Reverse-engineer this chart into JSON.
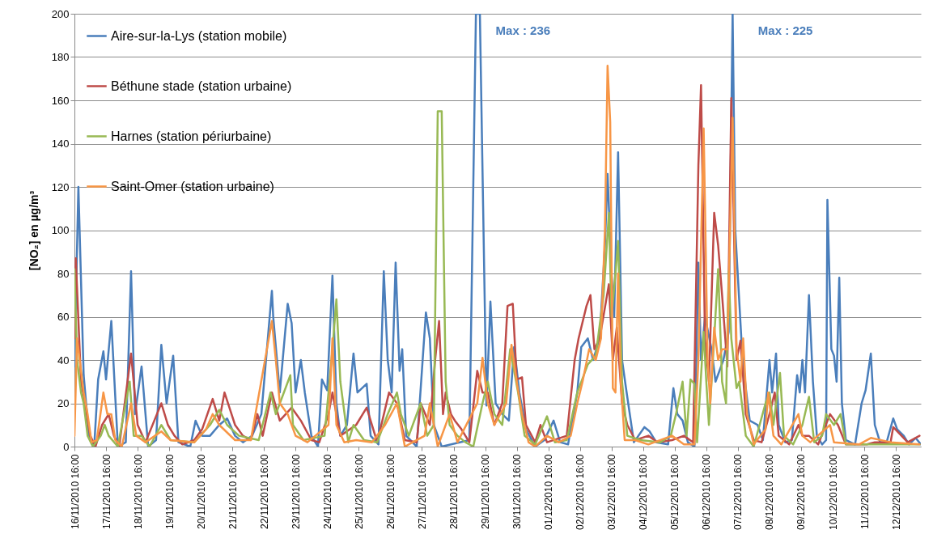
{
  "chart_data": {
    "type": "line",
    "ylabel": "[NO₂] en µg/m³",
    "annotations": [
      "Max : 236",
      "Max : 225"
    ],
    "xlim": [
      "2010-11-16T16:00",
      "2010-12-13T11:00"
    ],
    "ylim": [
      0,
      200
    ],
    "yticks": [
      0,
      20,
      40,
      60,
      80,
      100,
      120,
      140,
      160,
      180,
      200
    ],
    "xticks": [
      {
        "value": "2010-11-16T16:00",
        "label": "16/11/2010 16:00"
      },
      {
        "value": "2010-11-17T16:00",
        "label": "17/11/2010 16:00"
      },
      {
        "value": "2010-11-18T16:00",
        "label": "18/11/2010 16:00"
      },
      {
        "value": "2010-11-19T16:00",
        "label": "19/11/2010 16:00"
      },
      {
        "value": "2010-11-20T16:00",
        "label": "20/11/2010 16:00"
      },
      {
        "value": "2010-11-21T16:00",
        "label": "21/11/2010 16:00"
      },
      {
        "value": "2010-11-22T16:00",
        "label": "22/11/2010 16:00"
      },
      {
        "value": "2010-11-23T16:00",
        "label": "23/11/2010 16:00"
      },
      {
        "value": "2010-11-24T16:00",
        "label": "24/11/2010 16:00"
      },
      {
        "value": "2010-11-25T16:00",
        "label": "25/11/2010 16:00"
      },
      {
        "value": "2010-11-26T16:00",
        "label": "26/11/2010 16:00"
      },
      {
        "value": "2010-11-27T16:00",
        "label": "27/11/2010 16:00"
      },
      {
        "value": "2010-11-28T16:00",
        "label": "28/11/2010 16:00"
      },
      {
        "value": "2010-11-29T16:00",
        "label": "29/11/2010 16:00"
      },
      {
        "value": "2010-11-30T16:00",
        "label": "30/11/2010 16:00"
      },
      {
        "value": "2010-12-01T16:00",
        "label": "01/12/2010 16:00"
      },
      {
        "value": "2010-12-02T16:00",
        "label": "02/12/2010 16:00"
      },
      {
        "value": "2010-12-03T16:00",
        "label": "03/12/2010 16:00"
      },
      {
        "value": "2010-12-04T16:00",
        "label": "04/12/2010 16:00"
      },
      {
        "value": "2010-12-05T16:00",
        "label": "05/12/2010 16:00"
      },
      {
        "value": "2010-12-06T16:00",
        "label": "06/12/2010 16:00"
      },
      {
        "value": "2010-12-07T16:00",
        "label": "07/12/2010 16:00"
      },
      {
        "value": "2010-12-08T16:00",
        "label": "08/12/2010 16:00"
      },
      {
        "value": "2010-12-09T16:00",
        "label": "09/12/2010 16:00"
      },
      {
        "value": "2010-12-10T16:00",
        "label": "10/12/2010 16:00"
      },
      {
        "value": "2010-12-11T16:00",
        "label": "11/12/2010 16:00"
      },
      {
        "value": "2010-12-12T16:00",
        "label": "12/12/2010 16:00"
      }
    ],
    "grid": "y",
    "legend": "top left",
    "series": [
      {
        "name": "Aire-sur-la-Lys (station mobile)",
        "color": "#4a7ebb",
        "x": [
          "2010-11-16T16:00",
          "2010-11-16T19:00",
          "2010-11-16T23:00",
          "2010-11-17T03:00",
          "2010-11-17T07:00",
          "2010-11-17T10:00",
          "2010-11-17T14:00",
          "2010-11-17T16:00",
          "2010-11-17T20:00",
          "2010-11-18T01:00",
          "2010-11-18T07:00",
          "2010-11-18T11:00",
          "2010-11-18T14:00",
          "2010-11-18T19:00",
          "2010-11-19T00:00",
          "2010-11-19T06:00",
          "2010-11-19T10:00",
          "2010-11-19T14:00",
          "2010-11-19T19:00",
          "2010-11-19T23:00",
          "2010-11-20T08:00",
          "2010-11-20T12:00",
          "2010-11-20T17:00",
          "2010-11-20T23:00",
          "2010-11-21T06:00",
          "2010-11-21T12:00",
          "2010-11-21T18:00",
          "2010-11-22T00:00",
          "2010-11-22T07:00",
          "2010-11-22T14:00",
          "2010-11-22T22:00",
          "2010-11-22T23:00",
          "2010-11-23T04:00",
          "2010-11-23T10:00",
          "2010-11-23T13:00",
          "2010-11-23T16:00",
          "2010-11-23T20:00",
          "2010-11-23T23:00",
          "2010-11-24T04:00",
          "2010-11-24T09:00",
          "2010-11-24T12:00",
          "2010-11-24T16:00",
          "2010-11-24T20:00",
          "2010-11-24T23:00",
          "2010-11-25T02:00",
          "2010-11-25T07:00",
          "2010-11-25T12:00",
          "2010-11-25T15:00",
          "2010-11-25T22:00",
          "2010-11-26T01:00",
          "2010-11-26T07:00",
          "2010-11-26T11:00",
          "2010-11-26T14:00",
          "2010-11-26T17:00",
          "2010-11-26T20:00",
          "2010-11-26T23:00",
          "2010-11-27T01:00",
          "2010-11-27T04:00",
          "2010-11-27T12:00",
          "2010-11-27T19:00",
          "2010-11-27T22:00",
          "2010-11-28T01:00",
          "2010-11-28T07:00",
          "2010-11-29T04:00",
          "2010-11-29T09:00",
          "2010-11-29T12:00",
          "2010-11-29T17:00",
          "2010-11-29T20:00",
          "2010-11-30T00:00",
          "2010-11-30T05:00",
          "2010-11-30T10:00",
          "2010-11-30T14:00",
          "2010-11-30T18:00",
          "2010-11-30T23:00",
          "2010-12-01T06:00",
          "2010-12-01T13:00",
          "2010-12-01T20:00",
          "2010-12-02T01:00",
          "2010-12-02T07:00",
          "2010-12-02T14:00",
          "2010-12-02T17:00",
          "2010-12-02T22:00",
          "2010-12-03T02:00",
          "2010-12-03T07:00",
          "2010-12-03T11:00",
          "2010-12-03T13:00",
          "2010-12-03T16:00",
          "2010-12-03T18:00",
          "2010-12-03T21:00",
          "2010-12-04T00:00",
          "2010-12-04T03:00",
          "2010-12-04T09:00",
          "2010-12-04T17:00",
          "2010-12-04T21:00",
          "2010-12-05T02:00",
          "2010-12-05T11:00",
          "2010-12-05T15:00",
          "2010-12-05T18:00",
          "2010-12-05T22:00",
          "2010-12-06T02:00",
          "2010-12-06T07:00",
          "2010-12-06T10:00",
          "2010-12-06T12:00",
          "2010-12-06T15:00",
          "2010-12-06T20:00",
          "2010-12-06T23:00",
          "2010-12-07T05:00",
          "2010-12-07T09:00",
          "2010-12-07T12:00",
          "2010-12-07T14:00",
          "2010-12-07T19:00",
          "2010-12-07T22:00",
          "2010-12-08T01:00",
          "2010-12-08T07:00",
          "2010-12-08T11:00",
          "2010-12-08T16:00",
          "2010-12-08T18:00",
          "2010-12-08T21:00",
          "2010-12-08T23:00",
          "2010-12-09T04:00",
          "2010-12-09T09:00",
          "2010-12-09T13:00",
          "2010-12-09T15:00",
          "2010-12-09T17:00",
          "2010-12-09T19:00",
          "2010-12-09T22:00",
          "2010-12-10T01:00",
          "2010-12-10T04:00",
          "2010-12-10T08:00",
          "2010-12-10T11:00",
          "2010-12-10T12:00",
          "2010-12-10T15:00",
          "2010-12-10T17:00",
          "2010-12-10T19:00",
          "2010-12-10T21:00",
          "2010-12-10T23:00",
          "2010-12-11T02:00",
          "2010-12-11T09:00",
          "2010-12-11T14:00",
          "2010-12-11T17:00",
          "2010-12-11T21:00",
          "2010-12-12T00:00",
          "2010-12-12T04:00",
          "2010-12-12T09:00",
          "2010-12-12T14:00",
          "2010-12-12T17:00",
          "2010-12-12T22:00",
          "2010-12-13T02:00",
          "2010-12-13T07:00",
          "2010-12-13T11:00"
        ],
        "values": [
          37,
          120,
          33,
          5,
          0,
          31,
          44,
          31,
          58,
          0,
          2,
          81,
          15,
          37,
          0,
          3,
          47,
          20,
          42,
          2,
          0,
          12,
          5,
          5,
          10,
          13,
          5,
          2,
          5,
          15,
          72,
          60,
          25,
          66,
          57,
          25,
          40,
          25,
          5,
          0,
          31,
          26,
          79,
          20,
          5,
          10,
          43,
          25,
          29,
          5,
          1,
          81,
          40,
          25,
          85,
          35,
          45,
          5,
          0,
          62,
          50,
          10,
          0,
          3,
          200,
          200,
          19,
          67,
          20,
          15,
          12,
          46,
          25,
          8,
          0,
          3,
          12,
          2,
          1,
          25,
          46,
          50,
          40,
          50,
          93,
          126,
          80,
          60,
          136,
          40,
          27,
          2,
          9,
          7,
          2,
          1,
          27,
          15,
          12,
          2,
          0,
          85,
          40,
          60,
          45,
          30,
          40,
          53,
          200,
          100,
          46,
          27,
          12,
          10,
          3,
          40,
          25,
          43,
          10,
          2,
          3,
          33,
          25,
          40,
          25,
          70,
          30,
          5,
          1,
          3,
          114,
          45,
          42,
          30,
          78,
          20,
          3,
          1,
          20,
          26,
          43,
          10,
          2,
          2,
          13,
          8,
          5,
          1,
          4,
          1
        ]
      },
      {
        "name": "Béthune stade (station urbaine)",
        "color": "#be4b48",
        "x": [
          "2010-11-16T16:00",
          "2010-11-16T17:00",
          "2010-11-16T21:00",
          "2010-11-17T00:00",
          "2010-11-17T04:00",
          "2010-11-17T08:00",
          "2010-11-17T13:00",
          "2010-11-17T18:00",
          "2010-11-17T22:00",
          "2010-11-18T02:00",
          "2010-11-18T11:00",
          "2010-11-18T16:00",
          "2010-11-18T22:00",
          "2010-11-19T10:00",
          "2010-11-19T15:00",
          "2010-11-19T20:00",
          "2010-11-20T02:00",
          "2010-11-20T11:00",
          "2010-11-20T17:00",
          "2010-11-21T01:00",
          "2010-11-21T06:00",
          "2010-11-21T10:00",
          "2010-11-21T18:00",
          "2010-11-22T00:00",
          "2010-11-22T06:00",
          "2010-11-22T11:00",
          "2010-11-22T15:00",
          "2010-11-22T22:00",
          "2010-11-23T04:00",
          "2010-11-23T13:00",
          "2010-11-23T20:00",
          "2010-11-24T04:00",
          "2010-11-24T10:00",
          "2010-11-24T17:00",
          "2010-11-24T20:00",
          "2010-11-25T02:00",
          "2010-11-25T14:00",
          "2010-11-25T22:00",
          "2010-11-26T06:00",
          "2010-11-26T15:00",
          "2010-11-26T21:00",
          "2010-11-27T03:00",
          "2010-11-27T12:00",
          "2010-11-27T15:00",
          "2010-11-27T22:00",
          "2010-11-28T02:00",
          "2010-11-28T05:00",
          "2010-11-28T08:00",
          "2010-11-28T10:00",
          "2010-11-28T14:00",
          "2010-11-28T17:00",
          "2010-11-28T22:00",
          "2010-11-29T04:00",
          "2010-11-29T10:00",
          "2010-11-29T14:00",
          "2010-11-29T18:00",
          "2010-11-29T23:00",
          "2010-11-30T05:00",
          "2010-11-30T09:00",
          "2010-11-30T13:00",
          "2010-11-30T16:00",
          "2010-11-30T20:00",
          "2010-11-30T23:00",
          "2010-12-01T06:00",
          "2010-12-01T10:00",
          "2010-12-01T15:00",
          "2010-12-02T06:00",
          "2010-12-02T12:00",
          "2010-12-02T15:00",
          "2010-12-02T21:00",
          "2010-12-03T00:00",
          "2010-12-03T03:00",
          "2010-12-03T07:00",
          "2010-12-03T14:00",
          "2010-12-03T17:00",
          "2010-12-03T20:00",
          "2010-12-04T00:00",
          "2010-12-04T04:00",
          "2010-12-04T10:00",
          "2010-12-04T20:00",
          "2010-12-05T03:00",
          "2010-12-05T14:00",
          "2010-12-05T23:00",
          "2010-12-06T06:00",
          "2010-12-06T10:00",
          "2010-12-06T12:00",
          "2010-12-06T15:00",
          "2010-12-06T18:00",
          "2010-12-06T22:00",
          "2010-12-07T01:00",
          "2010-12-07T04:00",
          "2010-12-07T08:00",
          "2010-12-07T11:00",
          "2010-12-07T15:00",
          "2010-12-07T18:00",
          "2010-12-07T22:00",
          "2010-12-08T04:00",
          "2010-12-08T10:00",
          "2010-12-08T16:00",
          "2010-12-08T20:00",
          "2010-12-08T23:00",
          "2010-12-09T07:00",
          "2010-12-09T14:00",
          "2010-12-09T17:00",
          "2010-12-09T22:00",
          "2010-12-10T05:00",
          "2010-12-10T14:00",
          "2010-12-10T20:00",
          "2010-12-11T02:00",
          "2010-12-11T18:00",
          "2010-12-12T00:00",
          "2010-12-12T12:00",
          "2010-12-12T14:00",
          "2010-12-13T01:00",
          "2010-12-13T10:00"
        ],
        "values": [
          50,
          87,
          30,
          20,
          5,
          0,
          10,
          15,
          5,
          0,
          43,
          10,
          2,
          20,
          10,
          5,
          1,
          3,
          8,
          22,
          12,
          25,
          10,
          5,
          3,
          15,
          5,
          25,
          12,
          18,
          12,
          3,
          2,
          15,
          25,
          5,
          10,
          18,
          2,
          25,
          20,
          3,
          2,
          20,
          10,
          40,
          58,
          15,
          25,
          15,
          12,
          8,
          2,
          35,
          25,
          25,
          10,
          20,
          65,
          66,
          31,
          32,
          10,
          2,
          10,
          2,
          5,
          40,
          50,
          65,
          70,
          45,
          50,
          75,
          40,
          55,
          20,
          10,
          3,
          5,
          2,
          3,
          5,
          2,
          130,
          167,
          50,
          30,
          108,
          93,
          70,
          37,
          161,
          40,
          49,
          15,
          3,
          2,
          15,
          25,
          5,
          1,
          10,
          5,
          5,
          1,
          15,
          10,
          1,
          1,
          2,
          2,
          9,
          2,
          5
        ]
      },
      {
        "name": "Harnes (station périurbaine)",
        "color": "#98b954",
        "x": [
          "2010-11-16T16:00",
          "2010-11-16T18:00",
          "2010-11-16T21:00",
          "2010-11-16T23:00",
          "2010-11-17T02:00",
          "2010-11-17T06:00",
          "2010-11-17T12:00",
          "2010-11-17T15:00",
          "2010-11-17T18:00",
          "2010-11-18T01:00",
          "2010-11-18T10:00",
          "2010-11-18T13:00",
          "2010-11-18T19:00",
          "2010-11-19T01:00",
          "2010-11-19T10:00",
          "2010-11-19T17:00",
          "2010-11-20T11:00",
          "2010-11-20T23:00",
          "2010-11-21T06:00",
          "2010-11-21T12:00",
          "2010-11-21T21:00",
          "2010-11-22T12:00",
          "2010-11-22T21:00",
          "2010-11-23T01:00",
          "2010-11-23T12:00",
          "2010-11-23T14:00",
          "2010-11-23T22:00",
          "2010-11-24T14:00",
          "2010-11-24T20:00",
          "2010-11-24T23:00",
          "2010-11-25T02:00",
          "2010-11-25T08:00",
          "2010-11-25T12:00",
          "2010-11-25T20:00",
          "2010-11-26T06:00",
          "2010-11-26T14:00",
          "2010-11-26T21:00",
          "2010-11-27T00:00",
          "2010-11-27T06:00",
          "2010-11-27T15:00",
          "2010-11-27T20:00",
          "2010-11-28T01:00",
          "2010-11-28T02:00",
          "2010-11-28T04:00",
          "2010-11-28T07:00",
          "2010-11-28T10:00",
          "2010-11-28T13:00",
          "2010-11-28T19:00",
          "2010-11-29T01:00",
          "2010-11-29T07:00",
          "2010-11-29T14:00",
          "2010-11-29T18:00",
          "2010-11-29T23:00",
          "2010-11-30T05:00",
          "2010-11-30T11:00",
          "2010-11-30T17:00",
          "2010-11-30T22:00",
          "2010-12-01T06:00",
          "2010-12-01T15:00",
          "2010-12-01T21:00",
          "2010-12-02T06:00",
          "2010-12-02T14:00",
          "2010-12-02T22:00",
          "2010-12-03T04:00",
          "2010-12-03T10:00",
          "2010-12-03T14:00",
          "2010-12-03T16:00",
          "2010-12-03T19:00",
          "2010-12-03T21:00",
          "2010-12-04T00:00",
          "2010-12-04T04:00",
          "2010-12-04T14:00",
          "2010-12-05T05:00",
          "2010-12-05T13:00",
          "2010-12-05T17:00",
          "2010-12-05T22:00",
          "2010-12-06T01:00",
          "2010-12-06T04:00",
          "2010-12-06T07:00",
          "2010-12-06T09:00",
          "2010-12-06T14:00",
          "2010-12-06T16:00",
          "2010-12-06T18:00",
          "2010-12-06T22:00",
          "2010-12-07T01:00",
          "2010-12-07T04:00",
          "2010-12-07T07:00",
          "2010-12-07T09:00",
          "2010-12-07T11:00",
          "2010-12-07T15:00",
          "2010-12-07T17:00",
          "2010-12-07T22:00",
          "2010-12-08T04:00",
          "2010-12-08T13:00",
          "2010-12-08T16:00",
          "2010-12-08T19:00",
          "2010-12-09T00:00",
          "2010-12-09T03:00",
          "2010-12-09T10:00",
          "2010-12-09T17:00",
          "2010-12-09T22:00",
          "2010-12-10T02:00",
          "2010-12-10T08:00",
          "2010-12-10T11:00",
          "2010-12-10T17:00",
          "2010-12-10T22:00",
          "2010-12-11T02:00",
          "2010-12-12T00:00",
          "2010-12-12T12:00",
          "2010-12-13T01:00",
          "2010-12-13T10:00"
        ],
        "values": [
          82,
          40,
          25,
          20,
          5,
          0,
          5,
          10,
          5,
          0,
          30,
          5,
          5,
          0,
          10,
          3,
          2,
          10,
          17,
          10,
          5,
          3,
          25,
          15,
          33,
          10,
          3,
          5,
          45,
          68,
          30,
          2,
          10,
          3,
          2,
          15,
          25,
          15,
          5,
          20,
          5,
          10,
          60,
          155,
          155,
          30,
          10,
          5,
          2,
          0,
          20,
          30,
          15,
          10,
          45,
          25,
          5,
          1,
          14,
          2,
          3,
          25,
          38,
          42,
          70,
          108,
          60,
          80,
          95,
          30,
          5,
          3,
          2,
          5,
          15,
          30,
          5,
          31,
          29,
          2,
          53,
          30,
          10,
          50,
          82,
          30,
          20,
          81,
          50,
          27,
          30,
          5,
          0,
          20,
          25,
          10,
          34,
          5,
          1,
          10,
          23,
          2,
          5,
          15,
          10,
          15,
          1,
          1,
          1,
          1,
          1
        ]
      },
      {
        "name": "Saint-Omer (station urbaine)",
        "color": "#f79646",
        "x": [
          "2010-11-16T16:00",
          "2010-11-16T18:00",
          "2010-11-16T20:00",
          "2010-11-16T23:00",
          "2010-11-17T02:00",
          "2010-11-17T05:00",
          "2010-11-17T09:00",
          "2010-11-17T14:00",
          "2010-11-17T17:00",
          "2010-11-17T20:00",
          "2010-11-17T23:00",
          "2010-11-18T04:00",
          "2010-11-18T11:00",
          "2010-11-18T15:00",
          "2010-11-18T22:00",
          "2010-11-19T10:00",
          "2010-11-19T17:00",
          "2010-11-20T11:00",
          "2010-11-20T20:00",
          "2010-11-21T01:00",
          "2010-11-21T06:00",
          "2010-11-21T18:00",
          "2010-11-22T06:00",
          "2010-11-22T22:00",
          "2010-11-23T01:00",
          "2010-11-23T04:00",
          "2010-11-23T10:00",
          "2010-11-23T16:00",
          "2010-11-24T01:00",
          "2010-11-24T17:00",
          "2010-11-24T20:00",
          "2010-11-24T23:00",
          "2010-11-25T05:00",
          "2010-11-25T14:00",
          "2010-11-26T02:00",
          "2010-11-26T12:00",
          "2010-11-26T21:00",
          "2010-11-27T03:00",
          "2010-11-27T18:00",
          "2010-11-27T22:00",
          "2010-11-28T04:00",
          "2010-11-28T13:00",
          "2010-11-28T19:00",
          "2010-11-29T10:00",
          "2010-11-29T14:00",
          "2010-11-29T18:00",
          "2010-11-29T23:00",
          "2010-11-30T08:00",
          "2010-11-30T12:00",
          "2010-11-30T16:00",
          "2010-11-30T20:00",
          "2010-12-01T01:00",
          "2010-12-01T06:00",
          "2010-12-01T15:00",
          "2010-12-02T00:00",
          "2010-12-02T09:00",
          "2010-12-02T14:00",
          "2010-12-02T18:00",
          "2010-12-02T23:00",
          "2010-12-03T04:00",
          "2010-12-03T08:00",
          "2010-12-03T11:00",
          "2010-12-03T13:00",
          "2010-12-03T15:00",
          "2010-12-03T17:00",
          "2010-12-03T19:00",
          "2010-12-03T21:00",
          "2010-12-03T23:00",
          "2010-12-04T02:00",
          "2010-12-04T10:00",
          "2010-12-04T20:00",
          "2010-12-05T14:00",
          "2010-12-05T23:00",
          "2010-12-06T07:00",
          "2010-12-06T10:00",
          "2010-12-06T14:00",
          "2010-12-06T17:00",
          "2010-12-06T19:00",
          "2010-12-06T22:00",
          "2010-12-07T01:00",
          "2010-12-07T04:00",
          "2010-12-07T08:00",
          "2010-12-07T12:00",
          "2010-12-07T15:00",
          "2010-12-07T18:00",
          "2010-12-07T20:00",
          "2010-12-07T23:00",
          "2010-12-08T04:00",
          "2010-12-08T13:00",
          "2010-12-08T15:00",
          "2010-12-08T19:00",
          "2010-12-09T01:00",
          "2010-12-09T14:00",
          "2010-12-09T17:00",
          "2010-12-09T23:00",
          "2010-12-10T14:00",
          "2010-12-10T17:00",
          "2010-12-11T12:00",
          "2010-12-11T21:00",
          "2010-12-12T12:00",
          "2010-12-13T10:00"
        ],
        "values": [
          5,
          50,
          40,
          25,
          15,
          2,
          3,
          25,
          15,
          15,
          3,
          0,
          20,
          5,
          2,
          7,
          3,
          2,
          8,
          15,
          10,
          3,
          3,
          58,
          40,
          20,
          15,
          5,
          2,
          10,
          50,
          10,
          2,
          3,
          2,
          10,
          20,
          0,
          5,
          20,
          0,
          15,
          2,
          20,
          41,
          20,
          10,
          20,
          47,
          30,
          15,
          2,
          0,
          5,
          2,
          5,
          20,
          30,
          45,
          40,
          50,
          100,
          176,
          150,
          27,
          25,
          80,
          30,
          3,
          3,
          1,
          5,
          1,
          1,
          40,
          147,
          40,
          20,
          55,
          40,
          45,
          45,
          152,
          45,
          30,
          50,
          15,
          1,
          8,
          25,
          5,
          1,
          15,
          5,
          2,
          10,
          2,
          1,
          4,
          2,
          1
        ]
      }
    ]
  }
}
